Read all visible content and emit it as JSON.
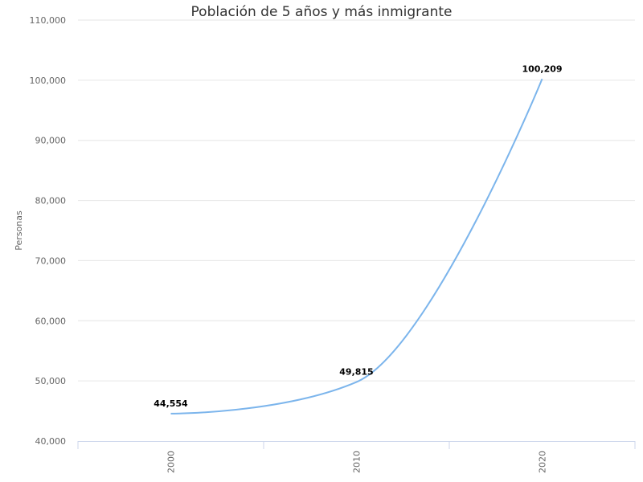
{
  "chart_data": {
    "type": "line",
    "title": "Población de 5 años y más inmigrante",
    "xlabel": "",
    "ylabel": "Personas",
    "categories": [
      "2000",
      "2010",
      "2020"
    ],
    "series": [
      {
        "values": [
          44554,
          49815,
          100209
        ],
        "color": "#7cb5ec"
      }
    ],
    "data_labels": [
      "44,554",
      "49,815",
      "100,209"
    ],
    "ylim": [
      40000,
      110000
    ],
    "yticks": [
      40000,
      50000,
      60000,
      70000,
      80000,
      90000,
      100000,
      110000
    ],
    "ytick_labels": [
      "40,000",
      "50,000",
      "60,000",
      "70,000",
      "80,000",
      "90,000",
      "100,000",
      "110,000"
    ],
    "grid": true,
    "smooth": true,
    "legend": "none"
  }
}
